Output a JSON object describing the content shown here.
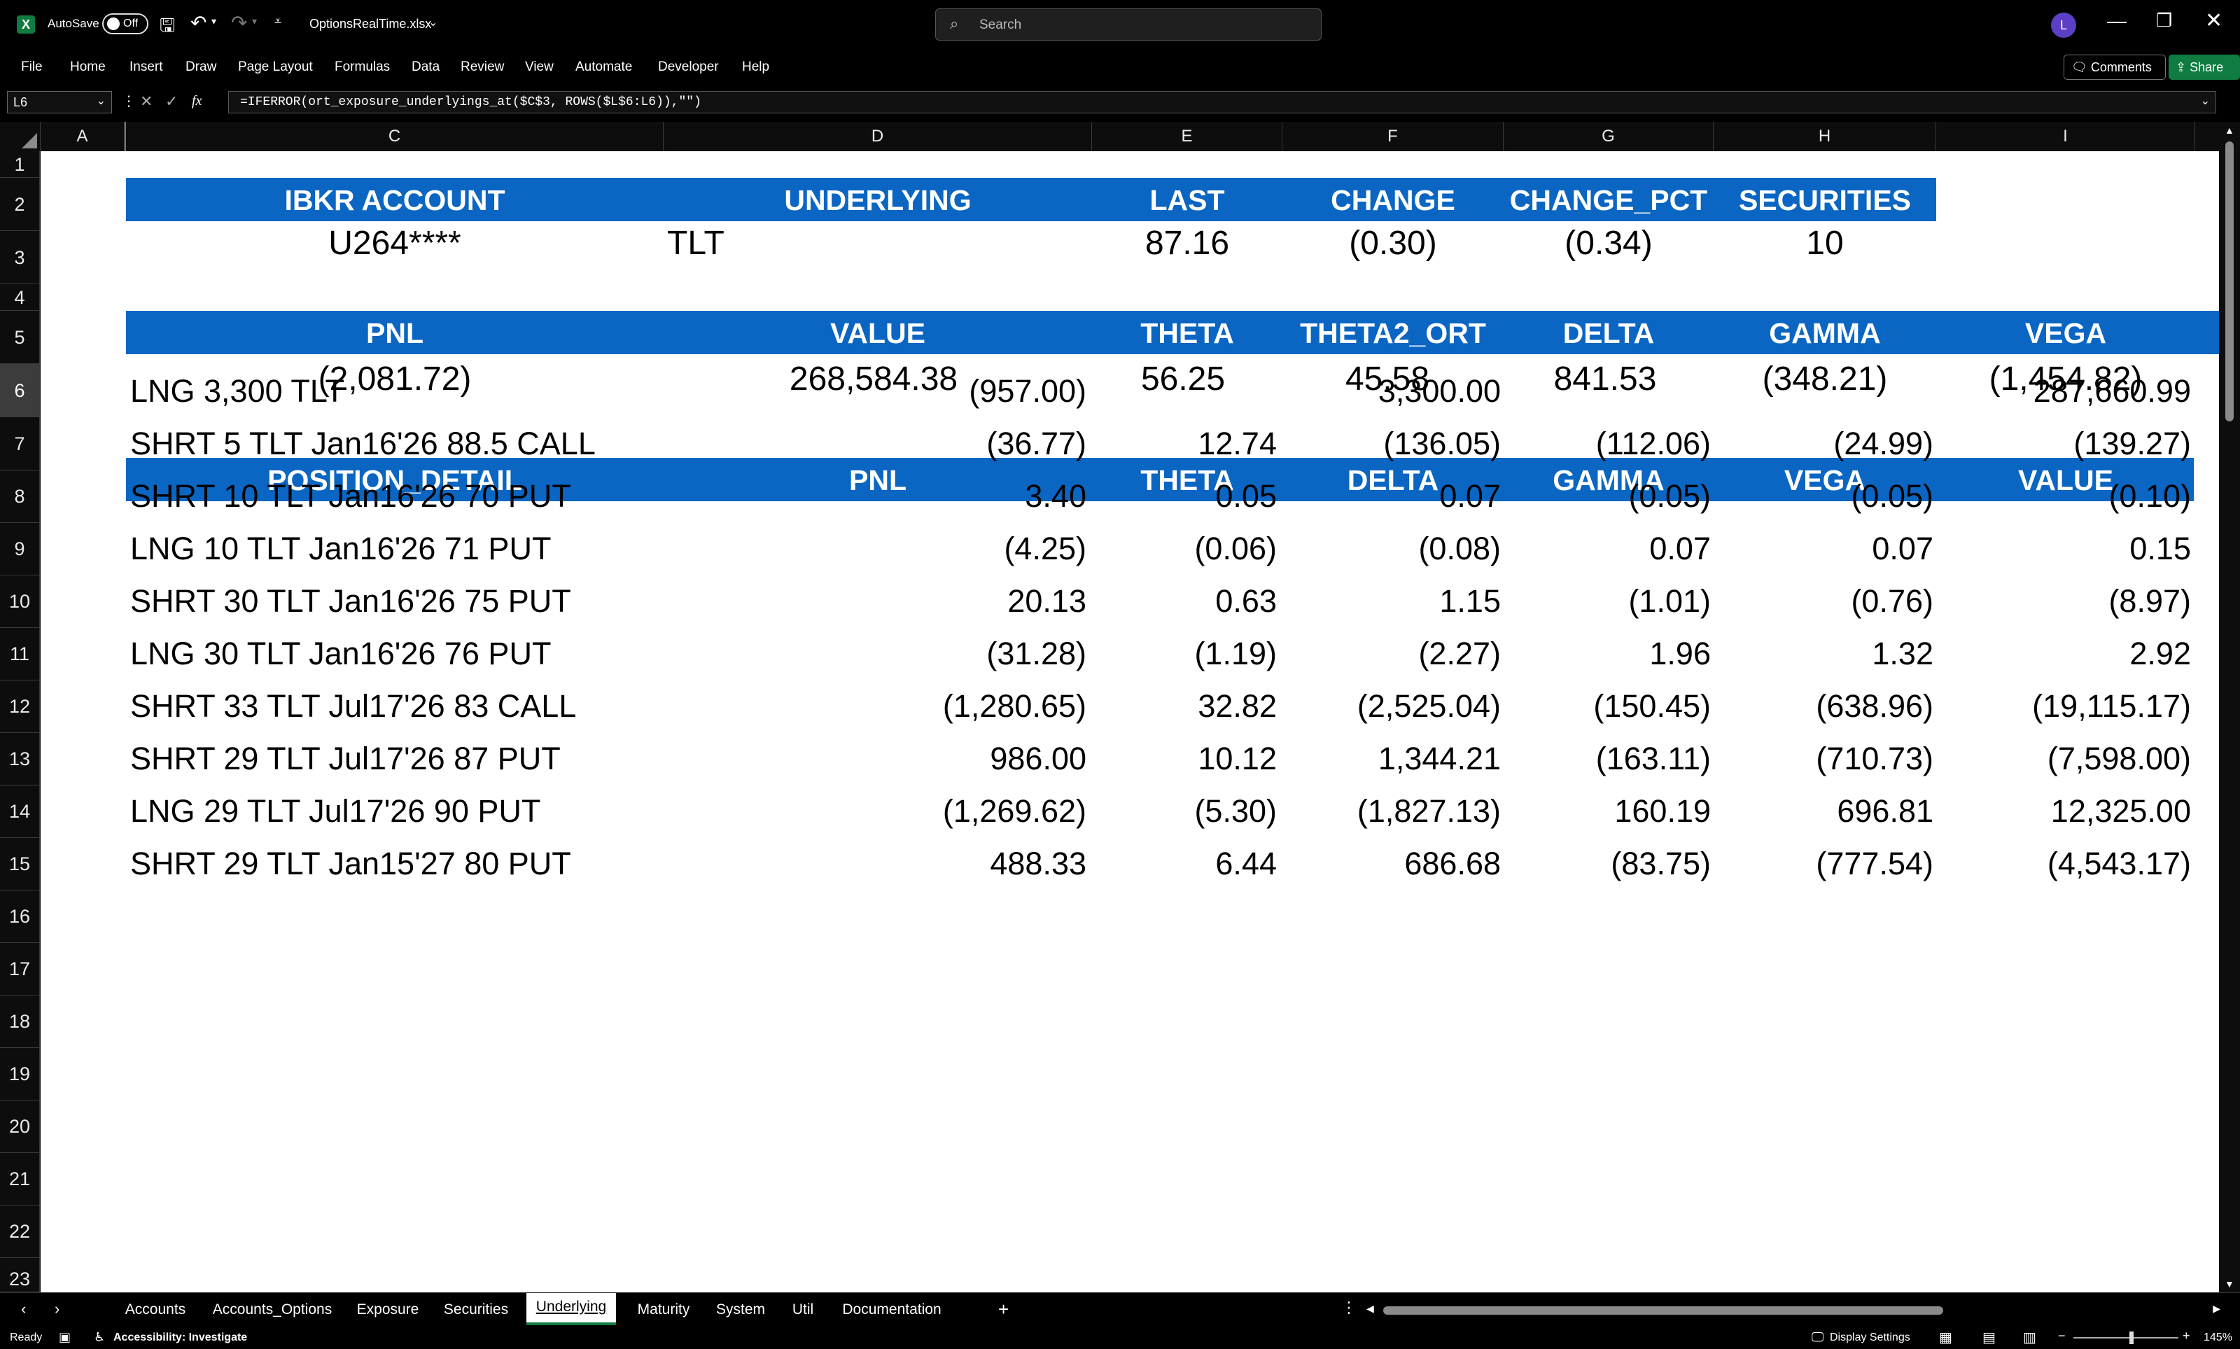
{
  "titlebar": {
    "autosave_label": "AutoSave",
    "autosave_state": "Off",
    "filename": "OptionsRealTime.xlsx",
    "search_placeholder": "Search",
    "user_initial": "L"
  },
  "menu": [
    "File",
    "Home",
    "Insert",
    "Draw",
    "Page Layout",
    "Formulas",
    "Data",
    "Review",
    "View",
    "Automate",
    "Developer",
    "Help"
  ],
  "comments_label": "Comments",
  "share_label": "Share",
  "formula": {
    "name_box": "L6",
    "fx": "fx",
    "text": "=IFERROR(ort_exposure_underlyings_at($C$3, ROWS($L$6:L6)),\"\")"
  },
  "columns": [
    "A",
    "C",
    "D",
    "E",
    "F",
    "G",
    "H",
    "I"
  ],
  "rows": [
    "1",
    "2",
    "3",
    "4",
    "5",
    "6",
    "7",
    "8",
    "9",
    "10",
    "11",
    "12",
    "13",
    "14",
    "15",
    "16",
    "17",
    "18",
    "19",
    "20",
    "21",
    "22",
    "23"
  ],
  "section1": {
    "headers": [
      "IBKR ACCOUNT",
      "UNDERLYING",
      "LAST",
      "CHANGE",
      "CHANGE_PCT",
      "SECURITIES"
    ],
    "values": [
      "U264****",
      "TLT",
      "87.16",
      "(0.30)",
      "(0.34)",
      "10"
    ]
  },
  "section2": {
    "headers": [
      "PNL",
      "VALUE",
      "THETA",
      "THETA2_ORT",
      "DELTA",
      "GAMMA",
      "VEGA"
    ],
    "values": [
      "(2,081.72)",
      "268,584.38",
      "56.25",
      "45.58",
      "841.53",
      "(348.21)",
      "(1,454.82)"
    ]
  },
  "section3": {
    "headers": [
      "POSITION_DETAIL",
      "PNL",
      "THETA",
      "DELTA",
      "GAMMA",
      "VEGA",
      "VALUE"
    ],
    "rows": [
      [
        "LNG 3,300 TLT",
        "(957.00)",
        "",
        "3,300.00",
        "",
        "",
        "287,660.99"
      ],
      [
        "SHRT 5 TLT Jan16'26 88.5 CALL",
        "(36.77)",
        "12.74",
        "(136.05)",
        "(112.06)",
        "(24.99)",
        "(139.27)"
      ],
      [
        "SHRT 10 TLT Jan16'26 70 PUT",
        "3.40",
        "0.05",
        "0.07",
        "(0.05)",
        "(0.05)",
        "(0.10)"
      ],
      [
        "LNG 10 TLT Jan16'26 71 PUT",
        "(4.25)",
        "(0.06)",
        "(0.08)",
        "0.07",
        "0.07",
        "0.15"
      ],
      [
        "SHRT 30 TLT Jan16'26 75 PUT",
        "20.13",
        "0.63",
        "1.15",
        "(1.01)",
        "(0.76)",
        "(8.97)"
      ],
      [
        "LNG 30 TLT Jan16'26 76 PUT",
        "(31.28)",
        "(1.19)",
        "(2.27)",
        "1.96",
        "1.32",
        "2.92"
      ],
      [
        "SHRT 33 TLT Jul17'26 83 CALL",
        "(1,280.65)",
        "32.82",
        "(2,525.04)",
        "(150.45)",
        "(638.96)",
        "(19,115.17)"
      ],
      [
        "SHRT 29 TLT Jul17'26 87 PUT",
        "986.00",
        "10.12",
        "1,344.21",
        "(163.11)",
        "(710.73)",
        "(7,598.00)"
      ],
      [
        "LNG 29 TLT Jul17'26 90 PUT",
        "(1,269.62)",
        "(5.30)",
        "(1,827.13)",
        "160.19",
        "696.81",
        "12,325.00"
      ],
      [
        "SHRT 29 TLT Jan15'27 80 PUT",
        "488.33",
        "6.44",
        "686.68",
        "(83.75)",
        "(777.54)",
        "(4,543.17)"
      ]
    ]
  },
  "sheet_tabs": [
    "Accounts",
    "Accounts_Options",
    "Exposure",
    "Securities",
    "Underlying",
    "Maturity",
    "System",
    "Util",
    "Documentation"
  ],
  "active_tab": "Underlying",
  "status": {
    "ready": "Ready",
    "accessibility": "Accessibility: Investigate",
    "display_settings": "Display Settings",
    "zoom": "145%"
  },
  "colors": {
    "header_band": "#0a66c2",
    "excel_green": "#107c41"
  }
}
